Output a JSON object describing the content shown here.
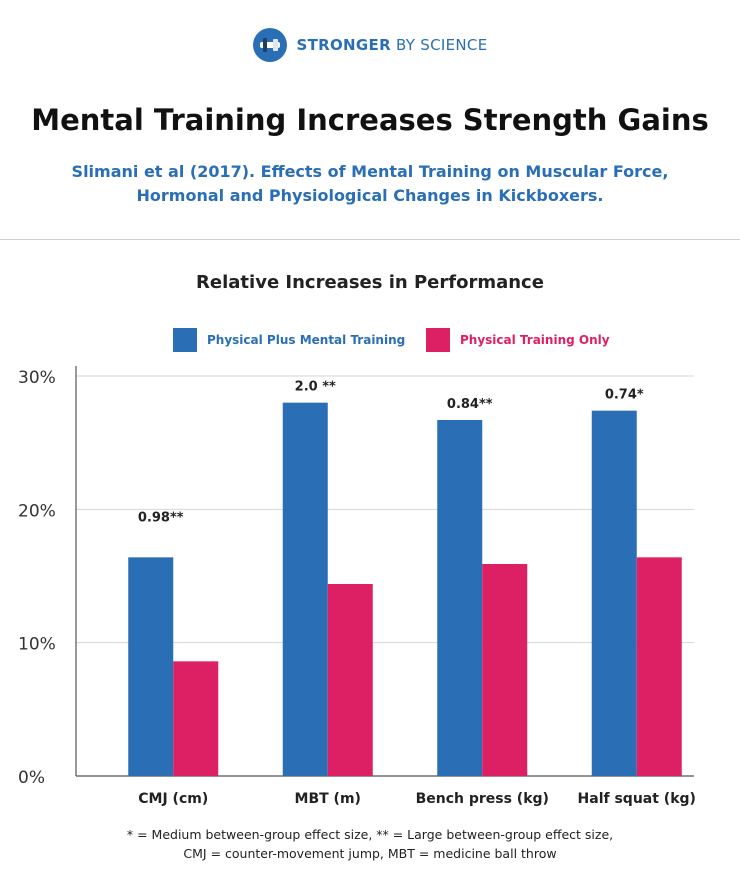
{
  "brand": {
    "name_bold": "STRONGER",
    "name_rest": "BY SCIENCE"
  },
  "title": "Mental Training Increases Strength Gains",
  "subtitle_line1": "Slimani et al (2017). Effects of Mental Training on Muscular Force,",
  "subtitle_line2": "Hormonal and Physiological Changes in Kickboxers.",
  "footnote_line1": "* = Medium between-group effect size, ** = Large between-group effect size,",
  "footnote_line2": "CMJ = counter-movement jump, MBT = medicine ball throw",
  "colors": {
    "blue": "#2a6fb5",
    "pink": "#dd1f63",
    "grid": "#d6d6d6",
    "axis": "#555555"
  },
  "chart_data": {
    "type": "bar",
    "title": "Relative Increases in Performance",
    "categories": [
      "CMJ (cm)",
      "MBT (m)",
      "Bench press (kg)",
      "Half squat (kg)"
    ],
    "series": [
      {
        "name": "Physical Plus Mental Training",
        "values": [
          16.4,
          28.0,
          26.7,
          27.4
        ]
      },
      {
        "name": "Physical Training Only",
        "values": [
          8.6,
          14.4,
          15.9,
          16.4
        ]
      }
    ],
    "annotations": [
      "0.98**",
      "2.0 **",
      "0.84**",
      "0.74*"
    ],
    "yticks": [
      "0%",
      "10%",
      "20%",
      "30%"
    ],
    "ylim": [
      0,
      30
    ],
    "grid": true,
    "legend_position": "top"
  }
}
